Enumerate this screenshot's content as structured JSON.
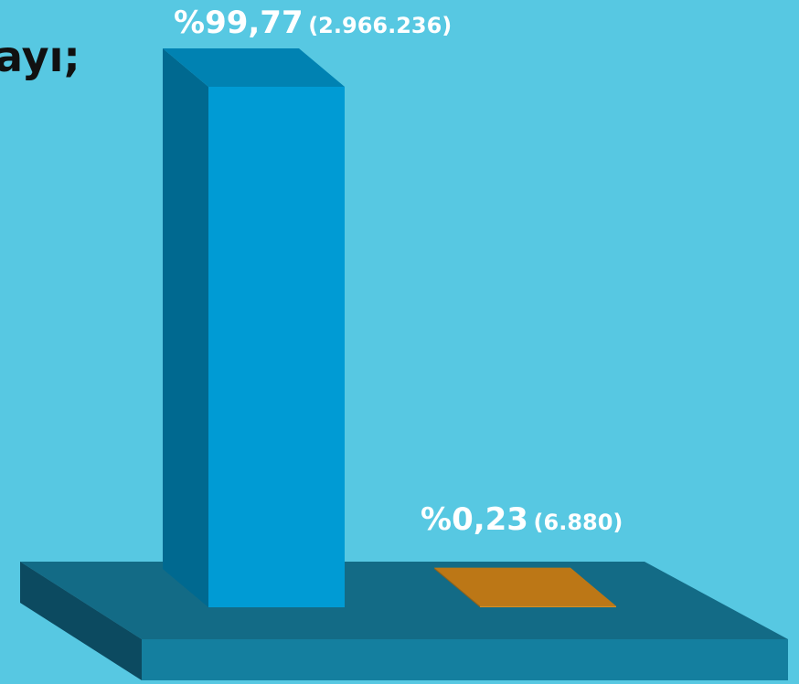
{
  "chart_data": {
    "type": "bar3d",
    "title": "ayı;",
    "categories": [
      null,
      null
    ],
    "values": [
      99.77,
      0.23
    ],
    "value_labels": [
      "%99,77",
      "%0,23"
    ],
    "counts": [
      2966236,
      6880
    ],
    "count_labels": [
      "(2.966.236)",
      "(6.880)"
    ],
    "colors": [
      "#009bd4",
      "#e08e1a"
    ]
  }
}
